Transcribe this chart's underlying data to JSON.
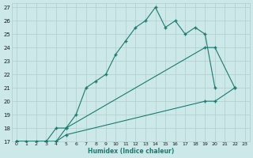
{
  "title": "",
  "xlabel": "Humidex (Indice chaleur)",
  "bg_color": "#cce8e8",
  "grid_color": "#b0cccc",
  "line_color": "#1a7a6e",
  "xlim": [
    -0.5,
    23.5
  ],
  "ylim": [
    17,
    27.3
  ],
  "xticks": [
    0,
    1,
    2,
    3,
    4,
    5,
    6,
    7,
    8,
    9,
    10,
    11,
    12,
    13,
    14,
    15,
    16,
    17,
    18,
    19,
    20,
    21,
    22,
    23
  ],
  "yticks": [
    17,
    18,
    19,
    20,
    21,
    22,
    23,
    24,
    25,
    26,
    27
  ],
  "line1_x": [
    0,
    1,
    2,
    3,
    4,
    5,
    6,
    7,
    8,
    9,
    10,
    11,
    12,
    13,
    14,
    15,
    16,
    17,
    18,
    19,
    20
  ],
  "line1_y": [
    17,
    17,
    17,
    17,
    17,
    18,
    19,
    21,
    21.5,
    22,
    23.5,
    24.5,
    25.5,
    26,
    27,
    25.5,
    26,
    25,
    25.5,
    25,
    21
  ],
  "line2_x": [
    0,
    3,
    4,
    5,
    19,
    20,
    22
  ],
  "line2_y": [
    17,
    17,
    18,
    18,
    24,
    24,
    21
  ],
  "line3_x": [
    0,
    3,
    4,
    5,
    19,
    20,
    22
  ],
  "line3_y": [
    17,
    17,
    17,
    17.5,
    20,
    20,
    21
  ]
}
